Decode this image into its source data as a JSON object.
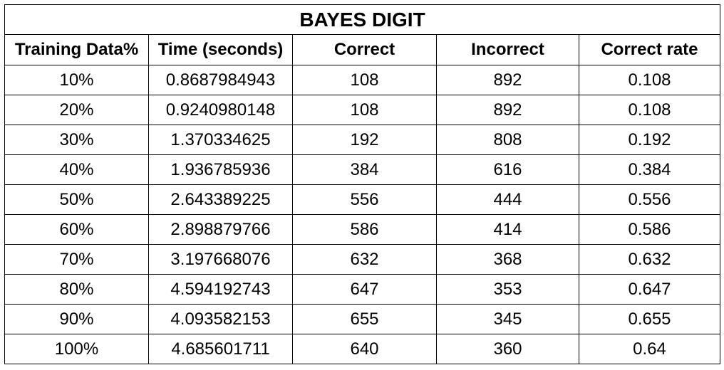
{
  "table": {
    "title": "BAYES DIGIT",
    "headers": [
      "Training Data%",
      "Time (seconds)",
      "Correct",
      "Incorrect",
      "Correct rate"
    ],
    "rows": [
      [
        "10%",
        "0.8687984943",
        "108",
        "892",
        "0.108"
      ],
      [
        "20%",
        "0.9240980148",
        "108",
        "892",
        "0.108"
      ],
      [
        "30%",
        "1.370334625",
        "192",
        "808",
        "0.192"
      ],
      [
        "40%",
        "1.936785936",
        "384",
        "616",
        "0.384"
      ],
      [
        "50%",
        "2.643389225",
        "556",
        "444",
        "0.556"
      ],
      [
        "60%",
        "2.898879766",
        "586",
        "414",
        "0.586"
      ],
      [
        "70%",
        "3.197668076",
        "632",
        "368",
        "0.632"
      ],
      [
        "80%",
        "4.594192743",
        "647",
        "353",
        "0.647"
      ],
      [
        "90%",
        "4.093582153",
        "655",
        "345",
        "0.655"
      ],
      [
        "100%",
        "4.685601711",
        "640",
        "360",
        "0.64"
      ]
    ]
  }
}
